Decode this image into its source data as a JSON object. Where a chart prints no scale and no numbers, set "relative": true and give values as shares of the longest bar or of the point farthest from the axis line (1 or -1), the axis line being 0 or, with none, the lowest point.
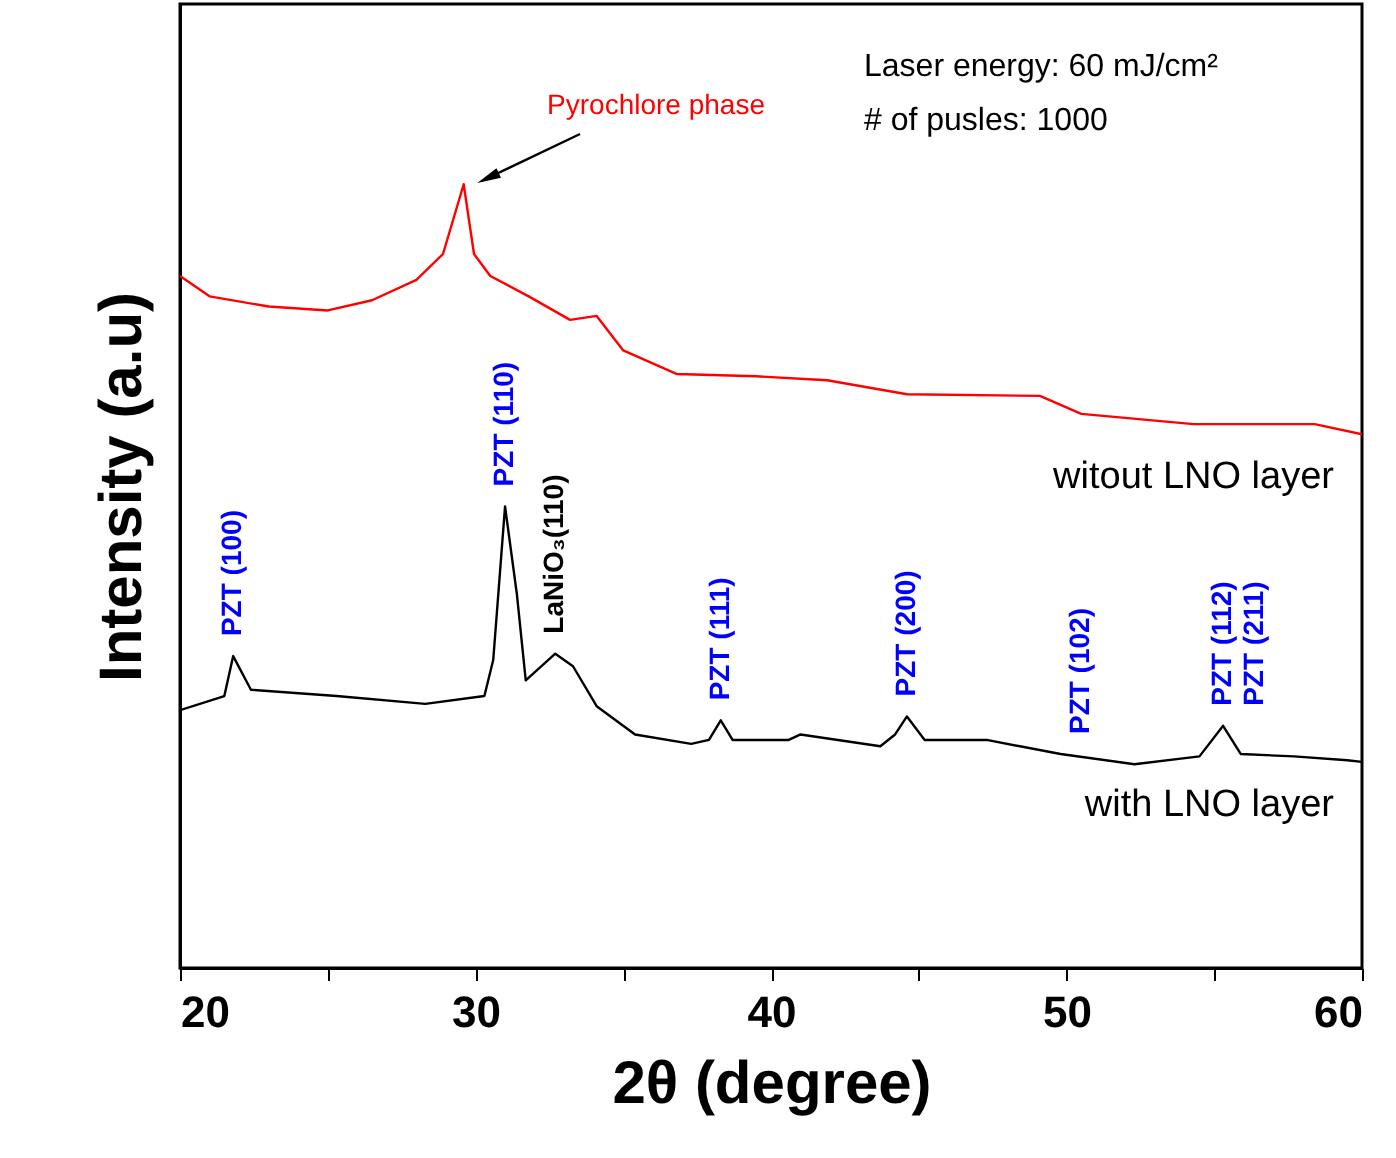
{
  "chart_data": {
    "type": "line",
    "relative": true,
    "xlabel": "2θ (degree)",
    "ylabel": "Intensity (a.u)",
    "xlim": [
      20,
      60
    ],
    "xticks": [
      20,
      {
        "value": 25,
        "label": null
      },
      30,
      {
        "value": 35,
        "label": null
      },
      40,
      {
        "value": 45,
        "label": null
      },
      50,
      {
        "value": 55,
        "label": null
      },
      60
    ],
    "grid": false,
    "marker": "none",
    "line_style": "solid",
    "series": [
      {
        "name": "witout LNO layer",
        "color": "#ff0000",
        "x": [
          20,
          21,
          23,
          25,
          26.5,
          28,
          28.9,
          29.6,
          29.95,
          30.5,
          31.8,
          33.2,
          34.1,
          35.0,
          36.8,
          39.5,
          41.9,
          44.6,
          49.1,
          50.5,
          54.3,
          58.4,
          60
        ],
        "values": [
          0.883,
          0.857,
          0.844,
          0.839,
          0.852,
          0.878,
          0.911,
          1.0,
          0.911,
          0.883,
          0.857,
          0.827,
          0.832,
          0.788,
          0.758,
          0.755,
          0.75,
          0.732,
          0.73,
          0.707,
          0.694,
          0.694,
          0.681
        ]
      },
      {
        "name": "with LNO layer",
        "color": "#000000",
        "x": [
          20,
          21.5,
          21.8,
          22.4,
          25.3,
          28.3,
          30.3,
          30.6,
          31.0,
          31.4,
          31.7,
          32.7,
          33.3,
          34.1,
          35.4,
          37.3,
          37.9,
          38.3,
          38.7,
          40.6,
          41.0,
          43.7,
          44.2,
          44.6,
          45.2,
          47.3,
          49.8,
          52.3,
          54.5,
          55.3,
          55.9,
          57.7,
          59.5,
          60
        ],
        "values": [
          0.329,
          0.347,
          0.398,
          0.355,
          0.347,
          0.337,
          0.347,
          0.393,
          0.589,
          0.477,
          0.367,
          0.401,
          0.385,
          0.334,
          0.298,
          0.286,
          0.291,
          0.316,
          0.291,
          0.291,
          0.298,
          0.283,
          0.298,
          0.321,
          0.291,
          0.291,
          0.273,
          0.26,
          0.27,
          0.309,
          0.273,
          0.27,
          0.265,
          0.263
        ]
      }
    ],
    "annotations": [
      "Laser energy: 60 mJ/cm²",
      "# of pusles: 1000",
      "Pyrochlore phase",
      {
        "text": "PZT (100)",
        "x": 21.8,
        "y": 0.398
      },
      {
        "text": "PZT (110)",
        "x": 31.0,
        "y": 0.589
      },
      {
        "text": "LaNiO₃(110)",
        "x": 32.7,
        "y": 0.401
      },
      {
        "text": "PZT (111)",
        "x": 38.3,
        "y": 0.316
      },
      {
        "text": "PZT (200)",
        "x": 44.6,
        "y": 0.321
      },
      {
        "text": "PZT (102)",
        "x": 50.5,
        "y": 0.273
      },
      {
        "text": "PZT (112)",
        "x": 55.3,
        "y": 0.309
      },
      {
        "text": "PZT (211)",
        "x": 55.3,
        "y": 0.309
      }
    ]
  }
}
